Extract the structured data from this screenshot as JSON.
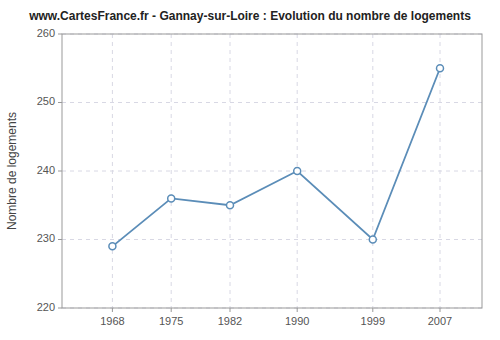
{
  "chart_data": {
    "type": "line",
    "title": "www.CartesFrance.fr - Gannay-sur-Loire : Evolution du nombre de logements",
    "ylabel": "Nombre de logements",
    "x": [
      1968,
      1975,
      1982,
      1990,
      1999,
      2007
    ],
    "values": [
      229,
      236,
      235,
      240,
      230,
      255
    ],
    "color": "#5B8DB8",
    "marker": "circle",
    "xlim": [
      1962,
      2012
    ],
    "xticks": [
      1968,
      1975,
      1982,
      1990,
      1999,
      2007
    ],
    "ylim": [
      220,
      260
    ],
    "yticks": [
      220,
      230,
      240,
      250,
      260
    ],
    "grid": true
  }
}
